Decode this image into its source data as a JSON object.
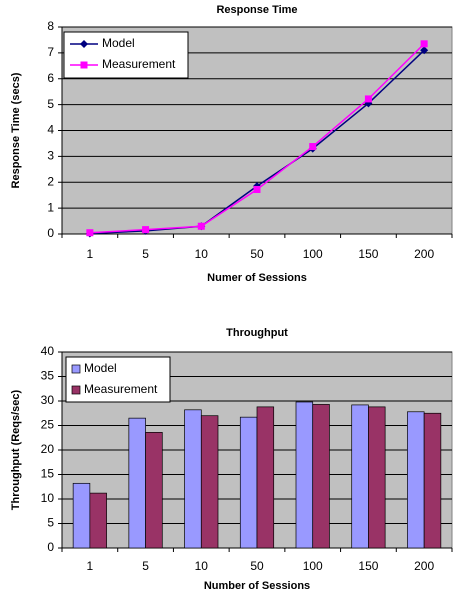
{
  "chart_data": [
    {
      "type": "line",
      "title": "Response Time",
      "x_label": "Numer of Sessions",
      "y_label": "Response Time (secs)",
      "categories": [
        "1",
        "5",
        "10",
        "50",
        "100",
        "150",
        "200"
      ],
      "series": [
        {
          "name": "Model",
          "color": "#000080",
          "marker": "diamond",
          "values": [
            0.02,
            0.12,
            0.3,
            1.85,
            3.3,
            5.05,
            7.1
          ]
        },
        {
          "name": "Measurement",
          "color": "#ff00ff",
          "marker": "square",
          "values": [
            0.05,
            0.17,
            0.3,
            1.72,
            3.38,
            5.22,
            7.35
          ]
        }
      ],
      "ylim": [
        0,
        8
      ],
      "yticks": [
        0,
        1,
        2,
        3,
        4,
        5,
        6,
        7,
        8
      ],
      "grid": true,
      "legend": "upper-left"
    },
    {
      "type": "bar",
      "title": "Throughput",
      "x_label": "Number of Sessions",
      "y_label": "Throughput (Reqs/sec)",
      "categories": [
        "1",
        "5",
        "10",
        "50",
        "100",
        "150",
        "200"
      ],
      "series": [
        {
          "name": "Model",
          "color": "#9999ff",
          "values": [
            13.2,
            26.5,
            28.2,
            26.7,
            29.8,
            29.2,
            27.8
          ]
        },
        {
          "name": "Measurement",
          "color": "#993366",
          "values": [
            11.2,
            23.6,
            27,
            28.8,
            29.3,
            28.8,
            27.5
          ]
        }
      ],
      "ylim": [
        0,
        40
      ],
      "yticks": [
        0,
        5,
        10,
        15,
        20,
        25,
        30,
        35,
        40
      ],
      "grid": true,
      "legend": "upper-left"
    }
  ]
}
